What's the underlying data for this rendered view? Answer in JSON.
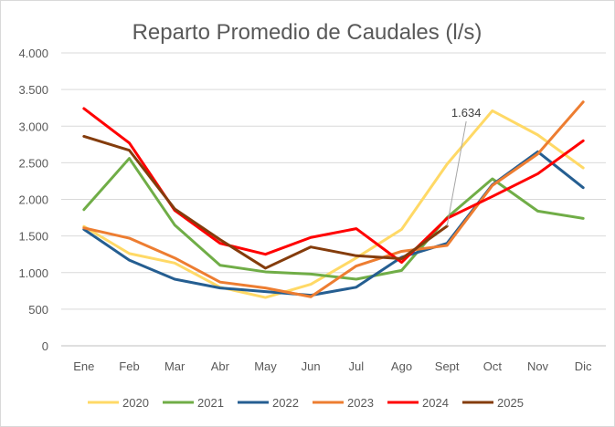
{
  "chart_data": {
    "type": "line",
    "title": "Reparto Promedio de Caudales (l/s)",
    "xlabel": "",
    "ylabel": "",
    "categories": [
      "Ene",
      "Feb",
      "Mar",
      "Abr",
      "May",
      "Jun",
      "Jul",
      "Ago",
      "Sept",
      "Oct",
      "Nov",
      "Dic"
    ],
    "ylim": [
      0,
      4000
    ],
    "yticks": [
      0,
      500,
      1000,
      1500,
      2000,
      2500,
      3000,
      3500,
      4000
    ],
    "ytick_labels": [
      "0",
      "500",
      "1.000",
      "1.500",
      "2.000",
      "2.500",
      "3.000",
      "3.500",
      "4.000"
    ],
    "grid": "horizontal",
    "legend_position": "bottom",
    "series": [
      {
        "name": "2020",
        "color": "#ffd966",
        "values": [
          1630,
          1260,
          1130,
          800,
          660,
          840,
          1200,
          1590,
          2480,
          3210,
          2880,
          2430
        ]
      },
      {
        "name": "2021",
        "color": "#70ad47",
        "values": [
          1860,
          2560,
          1650,
          1100,
          1010,
          980,
          910,
          1030,
          1750,
          2280,
          1840,
          1740
        ]
      },
      {
        "name": "2022",
        "color": "#255e91",
        "values": [
          1590,
          1170,
          910,
          790,
          740,
          690,
          800,
          1210,
          1400,
          2200,
          2650,
          2160
        ]
      },
      {
        "name": "2023",
        "color": "#ed7d31",
        "values": [
          1610,
          1470,
          1200,
          870,
          790,
          670,
          1090,
          1290,
          1370,
          2190,
          2620,
          3330
        ]
      },
      {
        "name": "2024",
        "color": "#ff0000",
        "values": [
          3240,
          2770,
          1850,
          1400,
          1250,
          1480,
          1600,
          1140,
          1740,
          2040,
          2350,
          2800
        ]
      },
      {
        "name": "2025",
        "color": "#843c0c",
        "values": [
          2860,
          2670,
          1870,
          1450,
          1060,
          1350,
          1230,
          1190,
          1634,
          null,
          null,
          null
        ]
      }
    ],
    "annotations": [
      {
        "text": "1.634",
        "series": "2025",
        "category": "Sept"
      }
    ]
  }
}
